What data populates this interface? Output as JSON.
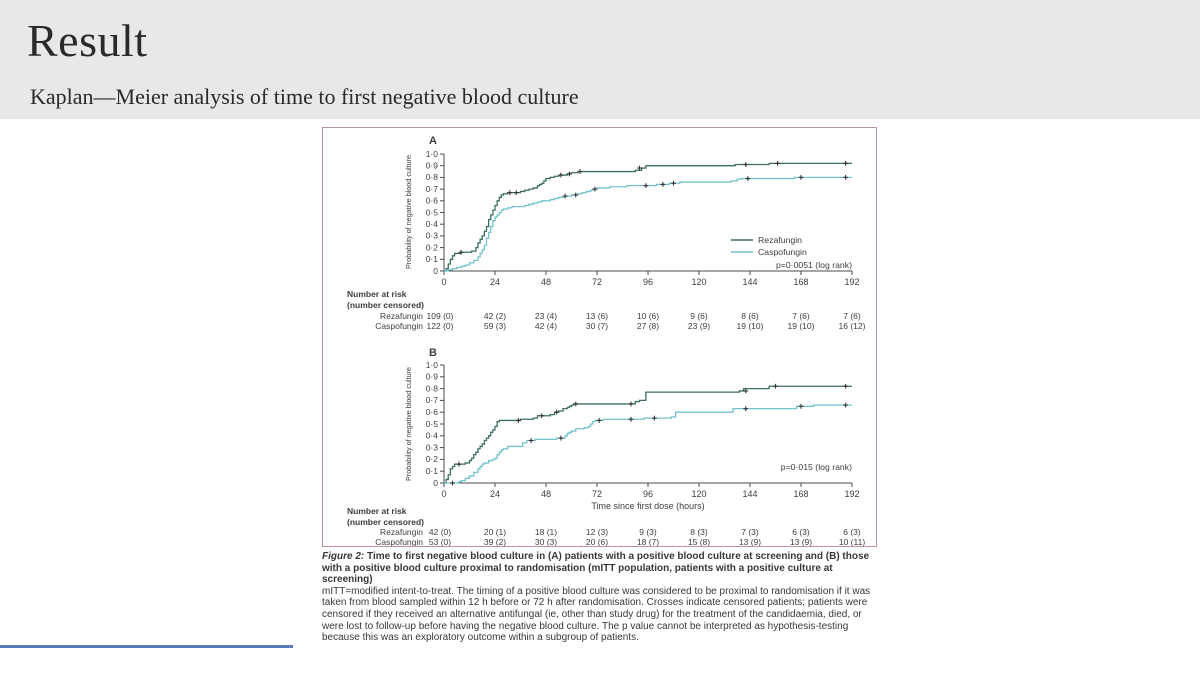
{
  "slide": {
    "title": "Result",
    "subtitle": "Kaplan—Meier analysis of time to first negative blood culture",
    "header_bg": "#e8e8e8",
    "accent_line_color": "#5b7cb8"
  },
  "figure": {
    "border_color": "#bb9599",
    "caption": {
      "label": "Figure 2:",
      "title": "Time to first negative blood culture in (A) patients with a positive blood culture at screening and (B) those with a positive blood culture proximal to randomisation (mITT population, patients with a positive culture at screening)",
      "body": "mITT=modified intent-to-treat. The timing of a positive blood culture was considered to be proximal to randomisation if it was taken from blood sampled within 12 h before or 72 h after randomisation. Crosses indicate censored patients; patients were censored if they received an alternative antifungal (ie, other than study drug) for the treatment of the candidaemia, died, or were lost to follow-up before having the negative blood culture. The p value cannot be interpreted as hypothesis-testing because this was an exploratory outcome within a subgroup of patients."
    }
  },
  "chart_data": [
    {
      "type": "line",
      "subtype": "kaplan-meier-step",
      "panel_label": "A",
      "ylabel": "Probability of negative blood culture",
      "xlabel": null,
      "xlim": [
        0,
        192
      ],
      "ylim": [
        0,
        1
      ],
      "xticks": [
        0,
        24,
        48,
        72,
        96,
        120,
        144,
        168,
        192
      ],
      "ytick_labels": [
        "1·0",
        "0·9",
        "0·8",
        "0·7",
        "0·6",
        "0·5",
        "0·4",
        "0·3",
        "0·2",
        "0·1",
        "0"
      ],
      "p_value_label": "p=0·0051 (log rank)",
      "legend": {
        "show": true,
        "position": "lower right"
      },
      "axis_color": "#4b4b4b",
      "censor_mark_color": "#333333",
      "series": [
        {
          "name": "Rezafungin",
          "color": "#3c6f60",
          "points": [
            [
              0,
              0
            ],
            [
              1,
              0.02
            ],
            [
              2,
              0.06
            ],
            [
              3,
              0.1
            ],
            [
              4,
              0.13
            ],
            [
              5,
              0.15
            ],
            [
              8,
              0.16
            ],
            [
              13,
              0.17
            ],
            [
              15,
              0.2
            ],
            [
              16,
              0.24
            ],
            [
              17,
              0.27
            ],
            [
              18,
              0.3
            ],
            [
              19,
              0.34
            ],
            [
              20,
              0.38
            ],
            [
              21,
              0.44
            ],
            [
              22,
              0.48
            ],
            [
              23,
              0.52
            ],
            [
              24,
              0.56
            ],
            [
              25,
              0.6
            ],
            [
              26,
              0.63
            ],
            [
              27,
              0.65
            ],
            [
              28,
              0.66
            ],
            [
              30,
              0.67
            ],
            [
              36,
              0.68
            ],
            [
              38,
              0.69
            ],
            [
              40,
              0.7
            ],
            [
              42,
              0.71
            ],
            [
              44,
              0.73
            ],
            [
              45,
              0.74
            ],
            [
              46,
              0.75
            ],
            [
              47,
              0.77
            ],
            [
              48,
              0.79
            ],
            [
              50,
              0.8
            ],
            [
              52,
              0.81
            ],
            [
              54,
              0.82
            ],
            [
              58,
              0.83
            ],
            [
              60,
              0.84
            ],
            [
              63,
              0.85
            ],
            [
              90,
              0.86
            ],
            [
              93,
              0.88
            ],
            [
              95,
              0.9
            ],
            [
              137,
              0.91
            ],
            [
              153,
              0.92
            ],
            [
              192,
              0.92
            ]
          ],
          "censor_marks": [
            [
              8,
              0.16
            ],
            [
              31,
              0.67
            ],
            [
              34,
              0.67
            ],
            [
              55,
              0.82
            ],
            [
              59,
              0.83
            ],
            [
              64,
              0.85
            ],
            [
              92,
              0.88
            ],
            [
              142,
              0.91
            ],
            [
              157,
              0.92
            ],
            [
              189,
              0.92
            ]
          ]
        },
        {
          "name": "Caspofungin",
          "color": "#72c3cd",
          "points": [
            [
              0,
              0
            ],
            [
              2,
              0.01
            ],
            [
              4,
              0.02
            ],
            [
              6,
              0.03
            ],
            [
              8,
              0.04
            ],
            [
              10,
              0.05
            ],
            [
              12,
              0.07
            ],
            [
              14,
              0.09
            ],
            [
              16,
              0.12
            ],
            [
              17,
              0.15
            ],
            [
              18,
              0.18
            ],
            [
              19,
              0.22
            ],
            [
              20,
              0.28
            ],
            [
              21,
              0.33
            ],
            [
              22,
              0.38
            ],
            [
              23,
              0.43
            ],
            [
              24,
              0.46
            ],
            [
              25,
              0.48
            ],
            [
              26,
              0.5
            ],
            [
              27,
              0.52
            ],
            [
              28,
              0.53
            ],
            [
              30,
              0.54
            ],
            [
              32,
              0.55
            ],
            [
              38,
              0.56
            ],
            [
              40,
              0.57
            ],
            [
              42,
              0.58
            ],
            [
              44,
              0.59
            ],
            [
              46,
              0.6
            ],
            [
              50,
              0.61
            ],
            [
              52,
              0.62
            ],
            [
              54,
              0.63
            ],
            [
              56,
              0.64
            ],
            [
              60,
              0.65
            ],
            [
              63,
              0.66
            ],
            [
              65,
              0.67
            ],
            [
              67,
              0.68
            ],
            [
              69,
              0.69
            ],
            [
              70,
              0.7
            ],
            [
              72,
              0.71
            ],
            [
              78,
              0.72
            ],
            [
              86,
              0.73
            ],
            [
              100,
              0.74
            ],
            [
              106,
              0.75
            ],
            [
              111,
              0.76
            ],
            [
              135,
              0.77
            ],
            [
              138,
              0.785
            ],
            [
              140,
              0.79
            ],
            [
              165,
              0.8
            ],
            [
              192,
              0.8
            ]
          ],
          "censor_marks": [
            [
              57,
              0.64
            ],
            [
              62,
              0.65
            ],
            [
              71,
              0.7
            ],
            [
              95,
              0.73
            ],
            [
              103,
              0.74
            ],
            [
              108,
              0.75
            ],
            [
              143,
              0.79
            ],
            [
              168,
              0.8
            ],
            [
              189,
              0.8
            ]
          ]
        }
      ],
      "risk_table": {
        "header_line1": "Number at risk",
        "header_line2": "(number censored)",
        "times": [
          0,
          24,
          48,
          72,
          96,
          120,
          144,
          168,
          192
        ],
        "rows": [
          {
            "name": "Rezafungin",
            "values": [
              "109 (0)",
              "42 (2)",
              "23 (4)",
              "13 (6)",
              "10 (6)",
              "9 (6)",
              "8 (6)",
              "7 (6)",
              "7 (6)"
            ]
          },
          {
            "name": "Caspofungin",
            "values": [
              "122 (0)",
              "59 (3)",
              "42 (4)",
              "30 (7)",
              "27 (8)",
              "23 (9)",
              "19 (10)",
              "19 (10)",
              "16 (12)"
            ]
          }
        ]
      }
    },
    {
      "type": "line",
      "subtype": "kaplan-meier-step",
      "panel_label": "B",
      "ylabel": "Probability of negative blood culture",
      "xlabel": "Time since first dose (hours)",
      "xlim": [
        0,
        192
      ],
      "ylim": [
        0,
        1
      ],
      "xticks": [
        0,
        24,
        48,
        72,
        96,
        120,
        144,
        168,
        192
      ],
      "ytick_labels": [
        "1·0",
        "0·9",
        "0·8",
        "0·7",
        "0·6",
        "0·5",
        "0·4",
        "0·3",
        "0·2",
        "0·1",
        "0"
      ],
      "p_value_label": "p=0·015 (log rank)",
      "legend": {
        "show": false,
        "position": null
      },
      "axis_color": "#4b4b4b",
      "censor_mark_color": "#333333",
      "series": [
        {
          "name": "Rezafungin",
          "color": "#3c6f60",
          "points": [
            [
              0,
              0
            ],
            [
              1,
              0.03
            ],
            [
              2,
              0.07
            ],
            [
              3,
              0.12
            ],
            [
              4,
              0.14
            ],
            [
              5,
              0.16
            ],
            [
              10,
              0.17
            ],
            [
              12,
              0.19
            ],
            [
              13,
              0.21
            ],
            [
              14,
              0.24
            ],
            [
              15,
              0.26
            ],
            [
              16,
              0.29
            ],
            [
              17,
              0.31
            ],
            [
              18,
              0.33
            ],
            [
              19,
              0.36
            ],
            [
              20,
              0.38
            ],
            [
              21,
              0.4
            ],
            [
              22,
              0.43
            ],
            [
              23,
              0.45
            ],
            [
              24,
              0.48
            ],
            [
              25,
              0.52
            ],
            [
              26,
              0.53
            ],
            [
              36,
              0.54
            ],
            [
              42,
              0.55
            ],
            [
              44,
              0.57
            ],
            [
              50,
              0.58
            ],
            [
              52,
              0.6
            ],
            [
              54,
              0.61
            ],
            [
              56,
              0.63
            ],
            [
              58,
              0.64
            ],
            [
              59,
              0.65
            ],
            [
              60,
              0.66
            ],
            [
              61,
              0.67
            ],
            [
              90,
              0.69
            ],
            [
              92,
              0.7
            ],
            [
              95,
              0.77
            ],
            [
              139,
              0.78
            ],
            [
              141,
              0.8
            ],
            [
              153,
              0.82
            ],
            [
              192,
              0.82
            ]
          ],
          "censor_marks": [
            [
              7,
              0.16
            ],
            [
              35,
              0.53
            ],
            [
              46,
              0.57
            ],
            [
              53,
              0.6
            ],
            [
              62,
              0.67
            ],
            [
              88,
              0.67
            ],
            [
              142,
              0.78
            ],
            [
              156,
              0.82
            ],
            [
              189,
              0.82
            ]
          ]
        },
        {
          "name": "Caspofungin",
          "color": "#72c3cd",
          "points": [
            [
              0,
              0
            ],
            [
              7,
              0.01
            ],
            [
              8,
              0.02
            ],
            [
              10,
              0.04
            ],
            [
              12,
              0.06
            ],
            [
              14,
              0.09
            ],
            [
              16,
              0.12
            ],
            [
              17,
              0.14
            ],
            [
              18,
              0.16
            ],
            [
              19,
              0.17
            ],
            [
              21,
              0.19
            ],
            [
              23,
              0.2
            ],
            [
              24,
              0.21
            ],
            [
              25,
              0.24
            ],
            [
              26,
              0.26
            ],
            [
              27,
              0.28
            ],
            [
              28,
              0.29
            ],
            [
              30,
              0.31
            ],
            [
              37,
              0.34
            ],
            [
              39,
              0.36
            ],
            [
              43,
              0.37
            ],
            [
              53,
              0.38
            ],
            [
              57,
              0.4
            ],
            [
              58,
              0.42
            ],
            [
              59,
              0.43
            ],
            [
              60,
              0.44
            ],
            [
              62,
              0.46
            ],
            [
              66,
              0.47
            ],
            [
              68,
              0.48
            ],
            [
              69,
              0.5
            ],
            [
              70,
              0.52
            ],
            [
              71,
              0.53
            ],
            [
              75,
              0.54
            ],
            [
              94,
              0.55
            ],
            [
              107,
              0.56
            ],
            [
              109,
              0.6
            ],
            [
              136,
              0.63
            ],
            [
              166,
              0.65
            ],
            [
              174,
              0.66
            ],
            [
              192,
              0.66
            ]
          ],
          "censor_marks": [
            [
              4,
              0
            ],
            [
              41,
              0.36
            ],
            [
              55,
              0.38
            ],
            [
              73,
              0.53
            ],
            [
              88,
              0.54
            ],
            [
              99,
              0.55
            ],
            [
              142,
              0.63
            ],
            [
              168,
              0.65
            ],
            [
              189,
              0.66
            ]
          ]
        }
      ],
      "risk_table": {
        "header_line1": "Number at risk",
        "header_line2": "(number censored)",
        "times": [
          0,
          24,
          48,
          72,
          96,
          120,
          144,
          168,
          192
        ],
        "rows": [
          {
            "name": "Rezafungin",
            "values": [
              "42 (0)",
              "20 (1)",
              "18 (1)",
              "12 (3)",
              "9 (3)",
              "8 (3)",
              "7 (3)",
              "6 (3)",
              "6 (3)"
            ]
          },
          {
            "name": "Caspofungin",
            "values": [
              "53 (0)",
              "39 (2)",
              "30 (3)",
              "20 (6)",
              "18 (7)",
              "15 (8)",
              "13 (9)",
              "13 (9)",
              "10 (11)"
            ]
          }
        ]
      }
    }
  ]
}
